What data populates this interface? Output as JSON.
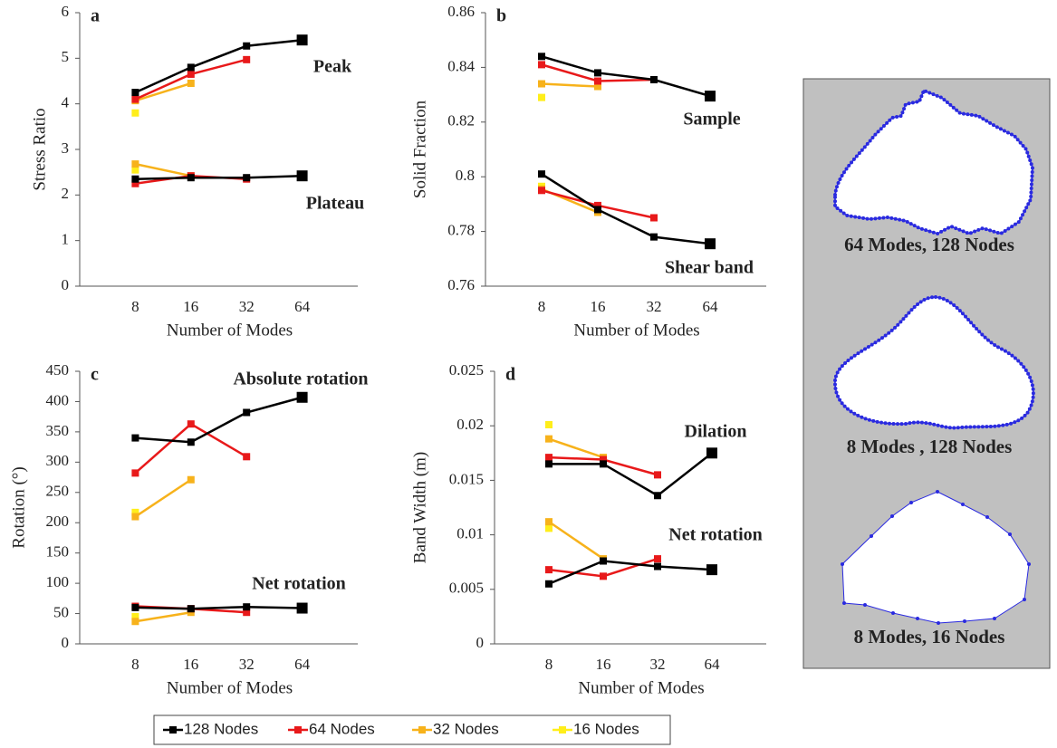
{
  "chart_data": [
    {
      "type": "line",
      "panel": "a",
      "xlabel": "Number of Modes",
      "ylabel": "Stress Ratio",
      "categories": [
        8,
        16,
        32,
        64
      ],
      "ylim": [
        0,
        6
      ],
      "yticks": [
        0,
        1,
        2,
        3,
        4,
        5,
        6
      ],
      "groups": [
        {
          "label": "Peak",
          "series": [
            {
              "values": [
                4.25,
                4.8,
                5.27,
                5.4
              ]
            },
            {
              "values": [
                4.1,
                4.65,
                4.97,
                null
              ]
            },
            {
              "values": [
                4.07,
                4.45,
                null,
                null
              ]
            },
            {
              "values": [
                3.8,
                null,
                null,
                null
              ]
            }
          ]
        },
        {
          "label": "Plateau",
          "series": [
            {
              "values": [
                2.35,
                2.38,
                2.38,
                2.42
              ]
            },
            {
              "values": [
                2.25,
                2.42,
                2.35,
                null
              ]
            },
            {
              "values": [
                2.68,
                2.42,
                null,
                null
              ]
            },
            {
              "values": [
                2.55,
                null,
                null,
                null
              ]
            }
          ]
        }
      ]
    },
    {
      "type": "line",
      "panel": "b",
      "xlabel": "Number of Modes",
      "ylabel": "Solid Fraction",
      "categories": [
        8,
        16,
        32,
        64
      ],
      "ylim": [
        0.76,
        0.86
      ],
      "yticks": [
        0.76,
        0.78,
        0.8,
        0.82,
        0.84,
        0.86
      ],
      "groups": [
        {
          "label": "Sample",
          "series": [
            {
              "values": [
                0.844,
                0.838,
                0.8355,
                0.8295
              ]
            },
            {
              "values": [
                0.841,
                0.835,
                0.8355,
                null
              ]
            },
            {
              "values": [
                0.834,
                0.833,
                null,
                null
              ]
            },
            {
              "values": [
                0.829,
                null,
                null,
                null
              ]
            }
          ]
        },
        {
          "label": "Shear band",
          "series": [
            {
              "values": [
                0.801,
                0.788,
                0.778,
                0.7755
              ]
            },
            {
              "values": [
                0.795,
                0.7895,
                0.785,
                null
              ]
            },
            {
              "values": [
                0.7955,
                0.787,
                null,
                null
              ]
            },
            {
              "values": [
                0.7965,
                null,
                null,
                null
              ]
            }
          ]
        }
      ]
    },
    {
      "type": "line",
      "panel": "c",
      "xlabel": "Number of Modes",
      "ylabel": "Rotation (°)",
      "categories": [
        8,
        16,
        32,
        64
      ],
      "ylim": [
        0,
        450
      ],
      "yticks": [
        0,
        50,
        100,
        150,
        200,
        250,
        300,
        350,
        400,
        450
      ],
      "groups": [
        {
          "label": "Absolute rotation",
          "series": [
            {
              "values": [
                340,
                333,
                382,
                407
              ]
            },
            {
              "values": [
                282,
                363,
                309,
                null
              ]
            },
            {
              "values": [
                210,
                271,
                null,
                null
              ]
            },
            {
              "values": [
                217,
                null,
                null,
                null
              ]
            }
          ]
        },
        {
          "label": "Net rotation",
          "series": [
            {
              "values": [
                60,
                58,
                61,
                59
              ]
            },
            {
              "values": [
                62,
                58,
                52,
                null
              ]
            },
            {
              "values": [
                37,
                52,
                null,
                null
              ]
            },
            {
              "values": [
                45,
                null,
                null,
                null
              ]
            }
          ]
        }
      ]
    },
    {
      "type": "line",
      "panel": "d",
      "xlabel": "Number of Modes",
      "ylabel": "Band Width (m)",
      "categories": [
        8,
        16,
        32,
        64
      ],
      "ylim": [
        0,
        0.025
      ],
      "yticks": [
        0,
        0.005,
        0.01,
        0.015,
        0.02,
        0.025
      ],
      "groups": [
        {
          "label": "Dilation",
          "series": [
            {
              "values": [
                0.0165,
                0.0165,
                0.0136,
                0.0175
              ]
            },
            {
              "values": [
                0.0171,
                0.0169,
                0.0155,
                null
              ]
            },
            {
              "values": [
                0.0188,
                0.0171,
                null,
                null
              ]
            },
            {
              "values": [
                0.0201,
                null,
                null,
                null
              ]
            }
          ]
        },
        {
          "label": "Net rotation",
          "series": [
            {
              "values": [
                0.0055,
                0.0076,
                0.0071,
                0.0068
              ]
            },
            {
              "values": [
                0.0068,
                0.0062,
                0.0078,
                null
              ]
            },
            {
              "values": [
                0.0112,
                0.0078,
                null,
                null
              ]
            },
            {
              "values": [
                0.0106,
                null,
                null,
                null
              ]
            }
          ]
        }
      ]
    }
  ],
  "legend": [
    {
      "name": "128 Nodes",
      "color": "#000000"
    },
    {
      "name": "64 Nodes",
      "color": "#e8191a"
    },
    {
      "name": "32 Nodes",
      "color": "#f7b21b"
    },
    {
      "name": "16 Nodes",
      "color": "#ffee1a"
    }
  ],
  "shapes": {
    "labels": [
      "64 Modes, 128 Nodes",
      "8 Modes , 128 Nodes",
      "8 Modes, 16 Nodes"
    ]
  }
}
